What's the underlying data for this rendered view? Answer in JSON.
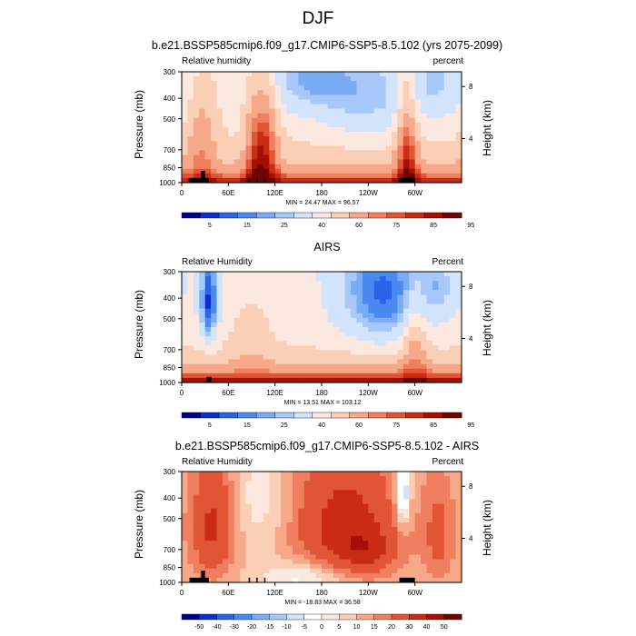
{
  "figure": {
    "title": "DJF"
  },
  "chart_data": [
    {
      "type": "heatmap",
      "title": "b.e21.BSSP585cmip6.f09_g17.CMIP6-SSP5-8.5.102 (yrs 2075-2099)",
      "left_subtitle": "Relative humidity",
      "right_subtitle": "percent",
      "ylabel": "Pressure (mb)",
      "ylabel_right": "Height (km)",
      "x_ticks": [
        "0",
        "60E",
        "120E",
        "180",
        "120W",
        "60W"
      ],
      "y_ticks": [
        "300",
        "400",
        "500",
        "700",
        "850",
        "1000"
      ],
      "y_right_ticks": [
        "8",
        "4"
      ],
      "minmax_text": "MIN = 24.47  MAX = 96.57",
      "colorbar_labels": [
        "5",
        "15",
        "25",
        "40",
        "60",
        "75",
        "85",
        "95"
      ],
      "palette": "rh",
      "field": {
        "base": 45,
        "surface_amp": 42,
        "bumps": [
          {
            "lon": 25,
            "p": 620,
            "w": 14,
            "h": 260,
            "a": 18
          },
          {
            "lon": 95,
            "p": 700,
            "w": 10,
            "h": 300,
            "a": 25
          },
          {
            "lon": 112,
            "p": 650,
            "w": 10,
            "h": 330,
            "a": 22
          },
          {
            "lon": 290,
            "p": 650,
            "w": 10,
            "h": 330,
            "a": 30
          },
          {
            "lon": 160,
            "p": 320,
            "w": 40,
            "h": 100,
            "a": -20
          },
          {
            "lon": 240,
            "p": 400,
            "w": 45,
            "h": 150,
            "a": -18
          },
          {
            "lon": 330,
            "p": 330,
            "w": 30,
            "h": 120,
            "a": -15
          }
        ]
      }
    },
    {
      "type": "heatmap",
      "title": "AIRS",
      "left_subtitle": "Relative Humidity",
      "right_subtitle": "Percent",
      "ylabel": "Pressure (mb)",
      "ylabel_right": "Height (km)",
      "x_ticks": [
        "0",
        "60E",
        "120E",
        "180",
        "120W",
        "60W"
      ],
      "y_ticks": [
        "300",
        "400",
        "500",
        "700",
        "850",
        "1000"
      ],
      "y_right_ticks": [
        "8",
        "4"
      ],
      "minmax_text": "MIN = 13.51  MAX = 103.12",
      "colorbar_labels": [
        "5",
        "15",
        "25",
        "40",
        "60",
        "75",
        "85",
        "95"
      ],
      "palette": "rh",
      "field": {
        "base": 42,
        "surface_amp": 50,
        "bumps": [
          {
            "lon": 35,
            "p": 420,
            "w": 8,
            "h": 150,
            "a": -35
          },
          {
            "lon": 260,
            "p": 380,
            "w": 40,
            "h": 180,
            "a": -30
          },
          {
            "lon": 300,
            "p": 650,
            "w": 12,
            "h": 250,
            "a": 18
          },
          {
            "lon": 90,
            "p": 600,
            "w": 20,
            "h": 250,
            "a": 8
          },
          {
            "lon": 330,
            "p": 350,
            "w": 20,
            "h": 100,
            "a": -12
          }
        ]
      }
    },
    {
      "type": "heatmap",
      "title": "b.e21.BSSP585cmip6.f09_g17.CMIP6-SSP5-8.5.102 - AIRS",
      "left_subtitle": "Relative Humidity",
      "right_subtitle": "Percent",
      "ylabel": "Pressure (mb)",
      "ylabel_right": "Height (km)",
      "x_ticks": [
        "0",
        "60E",
        "120E",
        "180",
        "120W",
        "60W"
      ],
      "y_ticks": [
        "300",
        "400",
        "500",
        "700",
        "850",
        "1000"
      ],
      "y_right_ticks": [
        "8",
        "4"
      ],
      "minmax_text": "MIN = -18.83  MAX = 36.58",
      "colorbar_labels": [
        "-50",
        "-40",
        "-30",
        "-20",
        "-15",
        "-10",
        "-5",
        "0",
        "5",
        "10",
        "15",
        "20",
        "30",
        "40",
        "50"
      ],
      "palette": "diff",
      "field": {
        "base": 10,
        "surface_amp": 0,
        "bumps": [
          {
            "lon": 40,
            "p": 550,
            "w": 20,
            "h": 250,
            "a": 22
          },
          {
            "lon": 210,
            "p": 550,
            "w": 45,
            "h": 280,
            "a": 25
          },
          {
            "lon": 240,
            "p": 700,
            "w": 25,
            "h": 120,
            "a": 12
          },
          {
            "lon": 100,
            "p": 400,
            "w": 25,
            "h": 200,
            "a": -8
          },
          {
            "lon": 285,
            "p": 380,
            "w": 6,
            "h": 100,
            "a": -25
          },
          {
            "lon": 330,
            "p": 600,
            "w": 15,
            "h": 250,
            "a": 12
          },
          {
            "lon": 160,
            "p": 950,
            "w": 40,
            "h": 120,
            "a": -14
          }
        ]
      }
    }
  ]
}
